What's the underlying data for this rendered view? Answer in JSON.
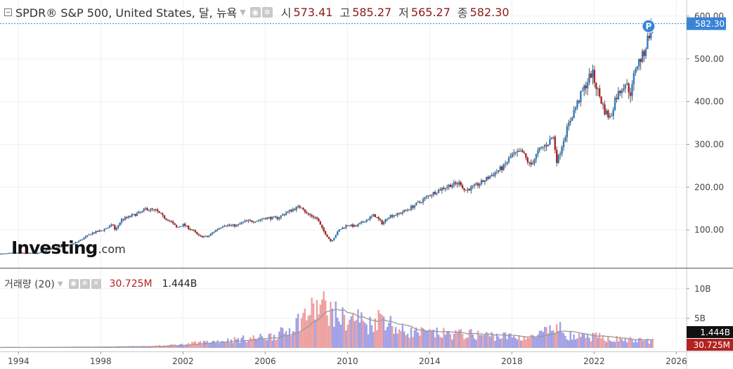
{
  "header": {
    "title": "SPDR® S&P 500, United States, 달, 뉴욕",
    "open_label": "시",
    "open": "573.41",
    "high_label": "고",
    "high": "585.27",
    "low_label": "저",
    "low": "565.27",
    "close_label": "종",
    "close": "582.30"
  },
  "volume_header": {
    "title": "거래량 (20)",
    "volume": "30.725M",
    "ma": "1.444B"
  },
  "brand": {
    "part1": "Investing",
    "part2": ".com"
  },
  "colors": {
    "up": "#2e7cc0",
    "down": "#b22222",
    "vol_up": "#8f8fe0",
    "vol_down": "#ea8f8f",
    "ma_line": "#999999",
    "price_tag": "#3a84d6"
  },
  "chart_data": [
    {
      "type": "candlestick",
      "title": "SPDR® S&P 500, United States, 달, 뉴욕",
      "interval": "monthly",
      "y_ticks": [
        100,
        200,
        300,
        400,
        500,
        600
      ],
      "y_tick_labels": [
        "100.00",
        "200.00",
        "300.00",
        "400.00",
        "500.00",
        "600.00"
      ],
      "ylim": [
        0,
        610
      ],
      "x_ticks": [
        1994,
        1998,
        2002,
        2006,
        2010,
        2014,
        2018,
        2022,
        2026
      ],
      "xlim": [
        1993.1,
        2026.5
      ],
      "last_price": "582.30",
      "marker": "P",
      "anchor_points": [
        [
          1993.1,
          44
        ],
        [
          1994.0,
          46
        ],
        [
          1994.9,
          45
        ],
        [
          1995.5,
          55
        ],
        [
          1996.0,
          62
        ],
        [
          1996.6,
          66
        ],
        [
          1997.0,
          76
        ],
        [
          1997.6,
          93
        ],
        [
          1998.0,
          98
        ],
        [
          1998.6,
          112
        ],
        [
          1998.7,
          98
        ],
        [
          1999.0,
          124
        ],
        [
          1999.5,
          133
        ],
        [
          2000.0,
          142
        ],
        [
          2000.2,
          150
        ],
        [
          2000.7,
          145
        ],
        [
          2001.0,
          132
        ],
        [
          2001.4,
          120
        ],
        [
          2001.7,
          105
        ],
        [
          2002.0,
          113
        ],
        [
          2002.5,
          98
        ],
        [
          2002.8,
          85
        ],
        [
          2003.2,
          84
        ],
        [
          2003.6,
          100
        ],
        [
          2004.0,
          112
        ],
        [
          2004.6,
          110
        ],
        [
          2005.0,
          120
        ],
        [
          2005.6,
          122
        ],
        [
          2006.0,
          128
        ],
        [
          2006.6,
          128
        ],
        [
          2007.0,
          140
        ],
        [
          2007.5,
          152
        ],
        [
          2007.8,
          155
        ],
        [
          2008.0,
          138
        ],
        [
          2008.5,
          128
        ],
        [
          2008.8,
          100
        ],
        [
          2009.2,
          73
        ],
        [
          2009.6,
          100
        ],
        [
          2010.0,
          112
        ],
        [
          2010.4,
          108
        ],
        [
          2010.8,
          120
        ],
        [
          2011.3,
          135
        ],
        [
          2011.7,
          115
        ],
        [
          2012.0,
          132
        ],
        [
          2012.5,
          138
        ],
        [
          2013.0,
          150
        ],
        [
          2013.6,
          168
        ],
        [
          2014.0,
          182
        ],
        [
          2014.6,
          197
        ],
        [
          2015.0,
          205
        ],
        [
          2015.5,
          210
        ],
        [
          2015.7,
          192
        ],
        [
          2016.0,
          198
        ],
        [
          2016.5,
          210
        ],
        [
          2017.0,
          228
        ],
        [
          2017.6,
          248
        ],
        [
          2018.0,
          275
        ],
        [
          2018.5,
          282
        ],
        [
          2018.9,
          250
        ],
        [
          2019.3,
          285
        ],
        [
          2019.8,
          305
        ],
        [
          2020.0,
          322
        ],
        [
          2020.2,
          258
        ],
        [
          2020.5,
          310
        ],
        [
          2020.9,
          365
        ],
        [
          2021.4,
          420
        ],
        [
          2021.9,
          470
        ],
        [
          2022.0,
          450
        ],
        [
          2022.5,
          380
        ],
        [
          2022.8,
          360
        ],
        [
          2023.0,
          405
        ],
        [
          2023.5,
          445
        ],
        [
          2023.8,
          418
        ],
        [
          2024.0,
          480
        ],
        [
          2024.4,
          510
        ],
        [
          2024.75,
          572
        ],
        [
          2024.85,
          582
        ]
      ]
    },
    {
      "type": "bar",
      "series": "volume",
      "y_ticks": [
        5,
        10
      ],
      "y_tick_labels": [
        "5B",
        "10B"
      ],
      "ylim": [
        0,
        12
      ],
      "moving_average_label": "1.444B",
      "last_volume_label": "30.725M",
      "anchor_points": [
        [
          1993.1,
          0.08
        ],
        [
          1995.0,
          0.1
        ],
        [
          1997.0,
          0.15
        ],
        [
          1999.0,
          0.2
        ],
        [
          2000.5,
          0.3
        ],
        [
          2002.0,
          0.6
        ],
        [
          2003.0,
          1.0
        ],
        [
          2004.0,
          1.3
        ],
        [
          2005.0,
          1.6
        ],
        [
          2006.0,
          1.9
        ],
        [
          2007.0,
          2.8
        ],
        [
          2008.0,
          6.0
        ],
        [
          2008.8,
          7.6
        ],
        [
          2009.2,
          6.4
        ],
        [
          2010.0,
          4.8
        ],
        [
          2010.5,
          5.5
        ],
        [
          2011.0,
          4.0
        ],
        [
          2011.7,
          5.8
        ],
        [
          2012.5,
          3.0
        ],
        [
          2014.0,
          2.6
        ],
        [
          2016.0,
          2.4
        ],
        [
          2018.0,
          2.0
        ],
        [
          2019.0,
          1.8
        ],
        [
          2020.2,
          3.6
        ],
        [
          2021.0,
          1.8
        ],
        [
          2022.0,
          2.0
        ],
        [
          2023.0,
          1.6
        ],
        [
          2024.0,
          1.35
        ],
        [
          2024.85,
          1.3
        ]
      ]
    }
  ]
}
